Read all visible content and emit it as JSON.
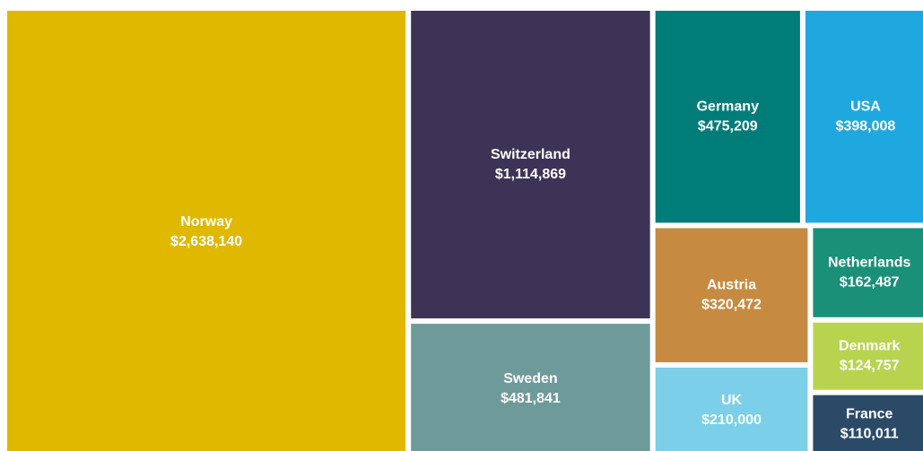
{
  "chart_data": {
    "type": "treemap",
    "categories": [
      "Norway",
      "Switzerland",
      "Sweden",
      "Germany",
      "USA",
      "Austria",
      "UK",
      "Netherlands",
      "Denmark",
      "France"
    ],
    "values": [
      2638140,
      1114869,
      481841,
      475209,
      398008,
      320472,
      210000,
      162487,
      124757,
      110011
    ],
    "value_labels": [
      "$2,638,140",
      "$1,114,869",
      "$481,841",
      "$475,209",
      "$398,008",
      "$320,472",
      "$210,000",
      "$162,487",
      "$124,757",
      "$110,011"
    ],
    "colors": [
      "#e0b800",
      "#3d3356",
      "#6e9a9a",
      "#007d78",
      "#1fa8e0",
      "#c68b40",
      "#7ccfe8",
      "#1a9079",
      "#b8d44e",
      "#2a4a68"
    ]
  }
}
